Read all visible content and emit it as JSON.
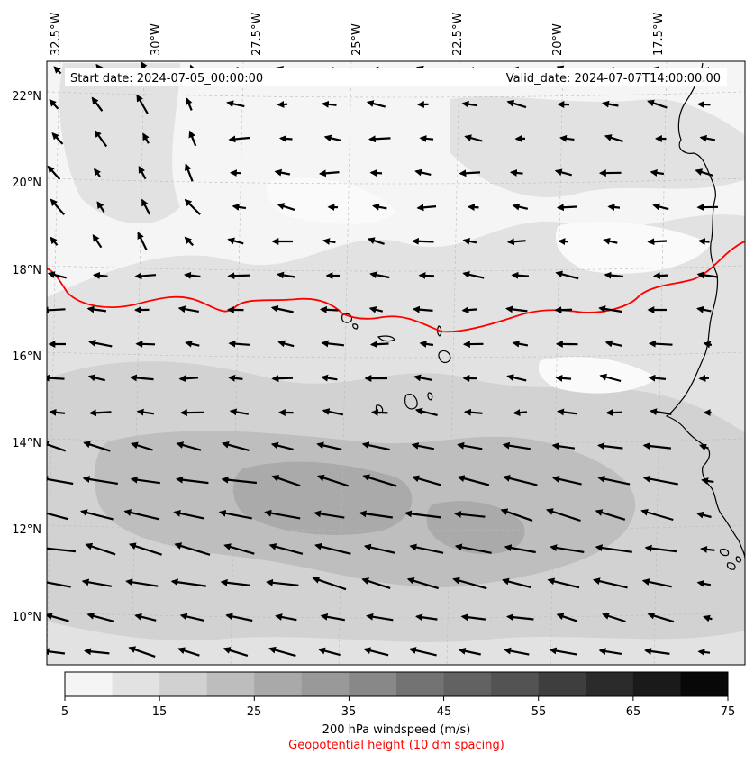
{
  "header": {
    "start_date": "Start date: 2024-07-05_00:00:00",
    "valid_date": "Valid_date: 2024-07-07T14:00:00.00"
  },
  "map": {
    "lon_range": [
      -32.5,
      -15.0
    ],
    "lat_range": [
      8.8,
      22.8
    ],
    "lon_ticks": [
      "32.5°W",
      "30°W",
      "27.5°W",
      "25°W",
      "22.5°W",
      "20°W",
      "17.5°W"
    ],
    "lat_ticks": [
      "22°N",
      "20°N",
      "18°N",
      "16°N",
      "14°N",
      "12°N",
      "10°N"
    ],
    "gridlines": true,
    "contour_color": "#ff0000",
    "coastline_color": "#000000",
    "fill_colors": [
      "#f5f5f5",
      "#e2e2e2",
      "#d2d2d2",
      "#bebebe",
      "#aaaaaa"
    ]
  },
  "colorbar": {
    "tick_labels": [
      "5",
      "15",
      "25",
      "35",
      "45",
      "55",
      "65",
      "75"
    ],
    "colors": [
      "#f5f5f5",
      "#e2e2e2",
      "#d1d1d1",
      "#bdbdbd",
      "#a9a9a9",
      "#999999",
      "#888888",
      "#737373",
      "#626262",
      "#535353",
      "#3e3e3e",
      "#2b2b2b",
      "#1a1a1a",
      "#080808"
    ],
    "label": "200 hPa windspeed (m/s)",
    "sublabel": "Geopotential height (10 dm spacing)",
    "sublabel_color": "#ff0000"
  }
}
